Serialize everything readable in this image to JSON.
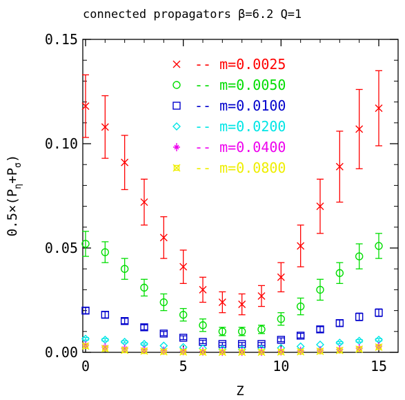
{
  "chart_data": {
    "type": "scatter",
    "title": "connected  propagators β=6.2 Q=1",
    "xlabel": "Z",
    "ylabel_parts": {
      "base": "0.5×(P",
      "sub1": "η",
      "mid": "+P",
      "sub2": "σ",
      "end": ")"
    },
    "xlim": [
      0,
      16
    ],
    "ylim": [
      0,
      0.15
    ],
    "xticks": [
      0,
      5,
      10,
      15
    ],
    "xtick_labels": [
      "0",
      "5",
      "10",
      "15"
    ],
    "yticks": [
      0.0,
      0.05,
      0.1,
      0.15
    ],
    "ytick_labels": [
      "0.00",
      "0.05",
      "0.10",
      "0.15"
    ],
    "grid": false,
    "legend_position": "top-center",
    "series": [
      {
        "name": "m=0.0025",
        "legend_label": "--  m=0.0025",
        "marker": "x",
        "color": "#ff0000",
        "x": [
          0,
          1,
          2,
          3,
          4,
          5,
          6,
          7,
          8,
          9,
          10,
          11,
          12,
          13,
          14,
          15
        ],
        "y": [
          0.118,
          0.108,
          0.091,
          0.072,
          0.055,
          0.041,
          0.03,
          0.024,
          0.023,
          0.027,
          0.036,
          0.051,
          0.07,
          0.089,
          0.107,
          0.117
        ],
        "err": [
          0.015,
          0.015,
          0.013,
          0.011,
          0.01,
          0.008,
          0.006,
          0.005,
          0.005,
          0.005,
          0.007,
          0.01,
          0.013,
          0.017,
          0.019,
          0.018
        ]
      },
      {
        "name": "m=0.0050",
        "legend_label": "--  m=0.0050",
        "marker": "circle",
        "color": "#00dd00",
        "x": [
          0,
          1,
          2,
          3,
          4,
          5,
          6,
          7,
          8,
          9,
          10,
          11,
          12,
          13,
          14,
          15
        ],
        "y": [
          0.052,
          0.048,
          0.04,
          0.031,
          0.024,
          0.018,
          0.013,
          0.01,
          0.01,
          0.011,
          0.016,
          0.022,
          0.03,
          0.038,
          0.046,
          0.051
        ],
        "err": [
          0.006,
          0.005,
          0.005,
          0.004,
          0.004,
          0.003,
          0.003,
          0.002,
          0.002,
          0.002,
          0.003,
          0.004,
          0.005,
          0.005,
          0.006,
          0.006
        ]
      },
      {
        "name": "m=0.0100",
        "legend_label": "--  m=0.0100",
        "marker": "square",
        "color": "#0000cc",
        "x": [
          0,
          1,
          2,
          3,
          4,
          5,
          6,
          7,
          8,
          9,
          10,
          11,
          12,
          13,
          14,
          15
        ],
        "y": [
          0.02,
          0.018,
          0.015,
          0.012,
          0.009,
          0.007,
          0.005,
          0.004,
          0.004,
          0.004,
          0.006,
          0.008,
          0.011,
          0.014,
          0.017,
          0.019
        ],
        "err": [
          0.0015,
          0.0015,
          0.0013,
          0.0012,
          0.001,
          0.0009,
          0.0008,
          0.0007,
          0.0007,
          0.0007,
          0.0009,
          0.0011,
          0.0013,
          0.0015,
          0.0018,
          0.0018
        ]
      },
      {
        "name": "m=0.0200",
        "legend_label": "--  m=0.0200",
        "marker": "diamond",
        "color": "#00e5e5",
        "x": [
          0,
          1,
          2,
          3,
          4,
          5,
          6,
          7,
          8,
          9,
          10,
          11,
          12,
          13,
          14,
          15
        ],
        "y": [
          0.0065,
          0.006,
          0.005,
          0.004,
          0.0032,
          0.0025,
          0.0019,
          0.0015,
          0.0014,
          0.0016,
          0.0021,
          0.0028,
          0.0037,
          0.0046,
          0.0055,
          0.006
        ],
        "err": [
          0.0006,
          0.0006,
          0.0005,
          0.0005,
          0.0004,
          0.0004,
          0.0003,
          0.0003,
          0.0003,
          0.0003,
          0.0003,
          0.0004,
          0.0004,
          0.0005,
          0.0006,
          0.0006
        ]
      },
      {
        "name": "m=0.0400",
        "legend_label": "--  m=0.0400",
        "marker": "star",
        "color": "#ee00ee",
        "x": [
          0,
          1,
          2,
          3,
          4,
          5,
          6,
          7,
          8,
          9,
          10,
          11,
          12,
          13,
          14,
          15
        ],
        "y": [
          0.0035,
          0.0025,
          0.0018,
          0.0012,
          0.0008,
          0.0006,
          0.0004,
          0.0003,
          0.0003,
          0.0003,
          0.0005,
          0.0007,
          0.001,
          0.0014,
          0.002,
          0.003
        ],
        "err": [
          0.0004,
          0.0003,
          0.0003,
          0.0002,
          0.0002,
          0.0001,
          0.0001,
          0.0001,
          0.0001,
          0.0001,
          0.0001,
          0.0001,
          0.0002,
          0.0002,
          0.0003,
          0.0004
        ]
      },
      {
        "name": "m=0.0800",
        "legend_label": "--  m=0.0800",
        "marker": "square-star",
        "color": "#eeee00",
        "x": [
          0,
          1,
          2,
          3,
          4,
          5,
          6,
          7,
          8,
          9,
          10,
          11,
          12,
          13,
          14,
          15
        ],
        "y": [
          0.003,
          0.0018,
          0.001,
          0.0006,
          0.0003,
          0.0002,
          0.0001,
          0.0001,
          0.0001,
          0.0001,
          0.0002,
          0.0003,
          0.0005,
          0.0009,
          0.0015,
          0.0025
        ],
        "err": [
          0.0004,
          0.0003,
          0.0002,
          0.0001,
          0.0001,
          0.0001,
          0.0001,
          0.0001,
          0.0001,
          0.0001,
          0.0001,
          0.0001,
          0.0001,
          0.0002,
          0.0003,
          0.0004
        ]
      }
    ]
  }
}
